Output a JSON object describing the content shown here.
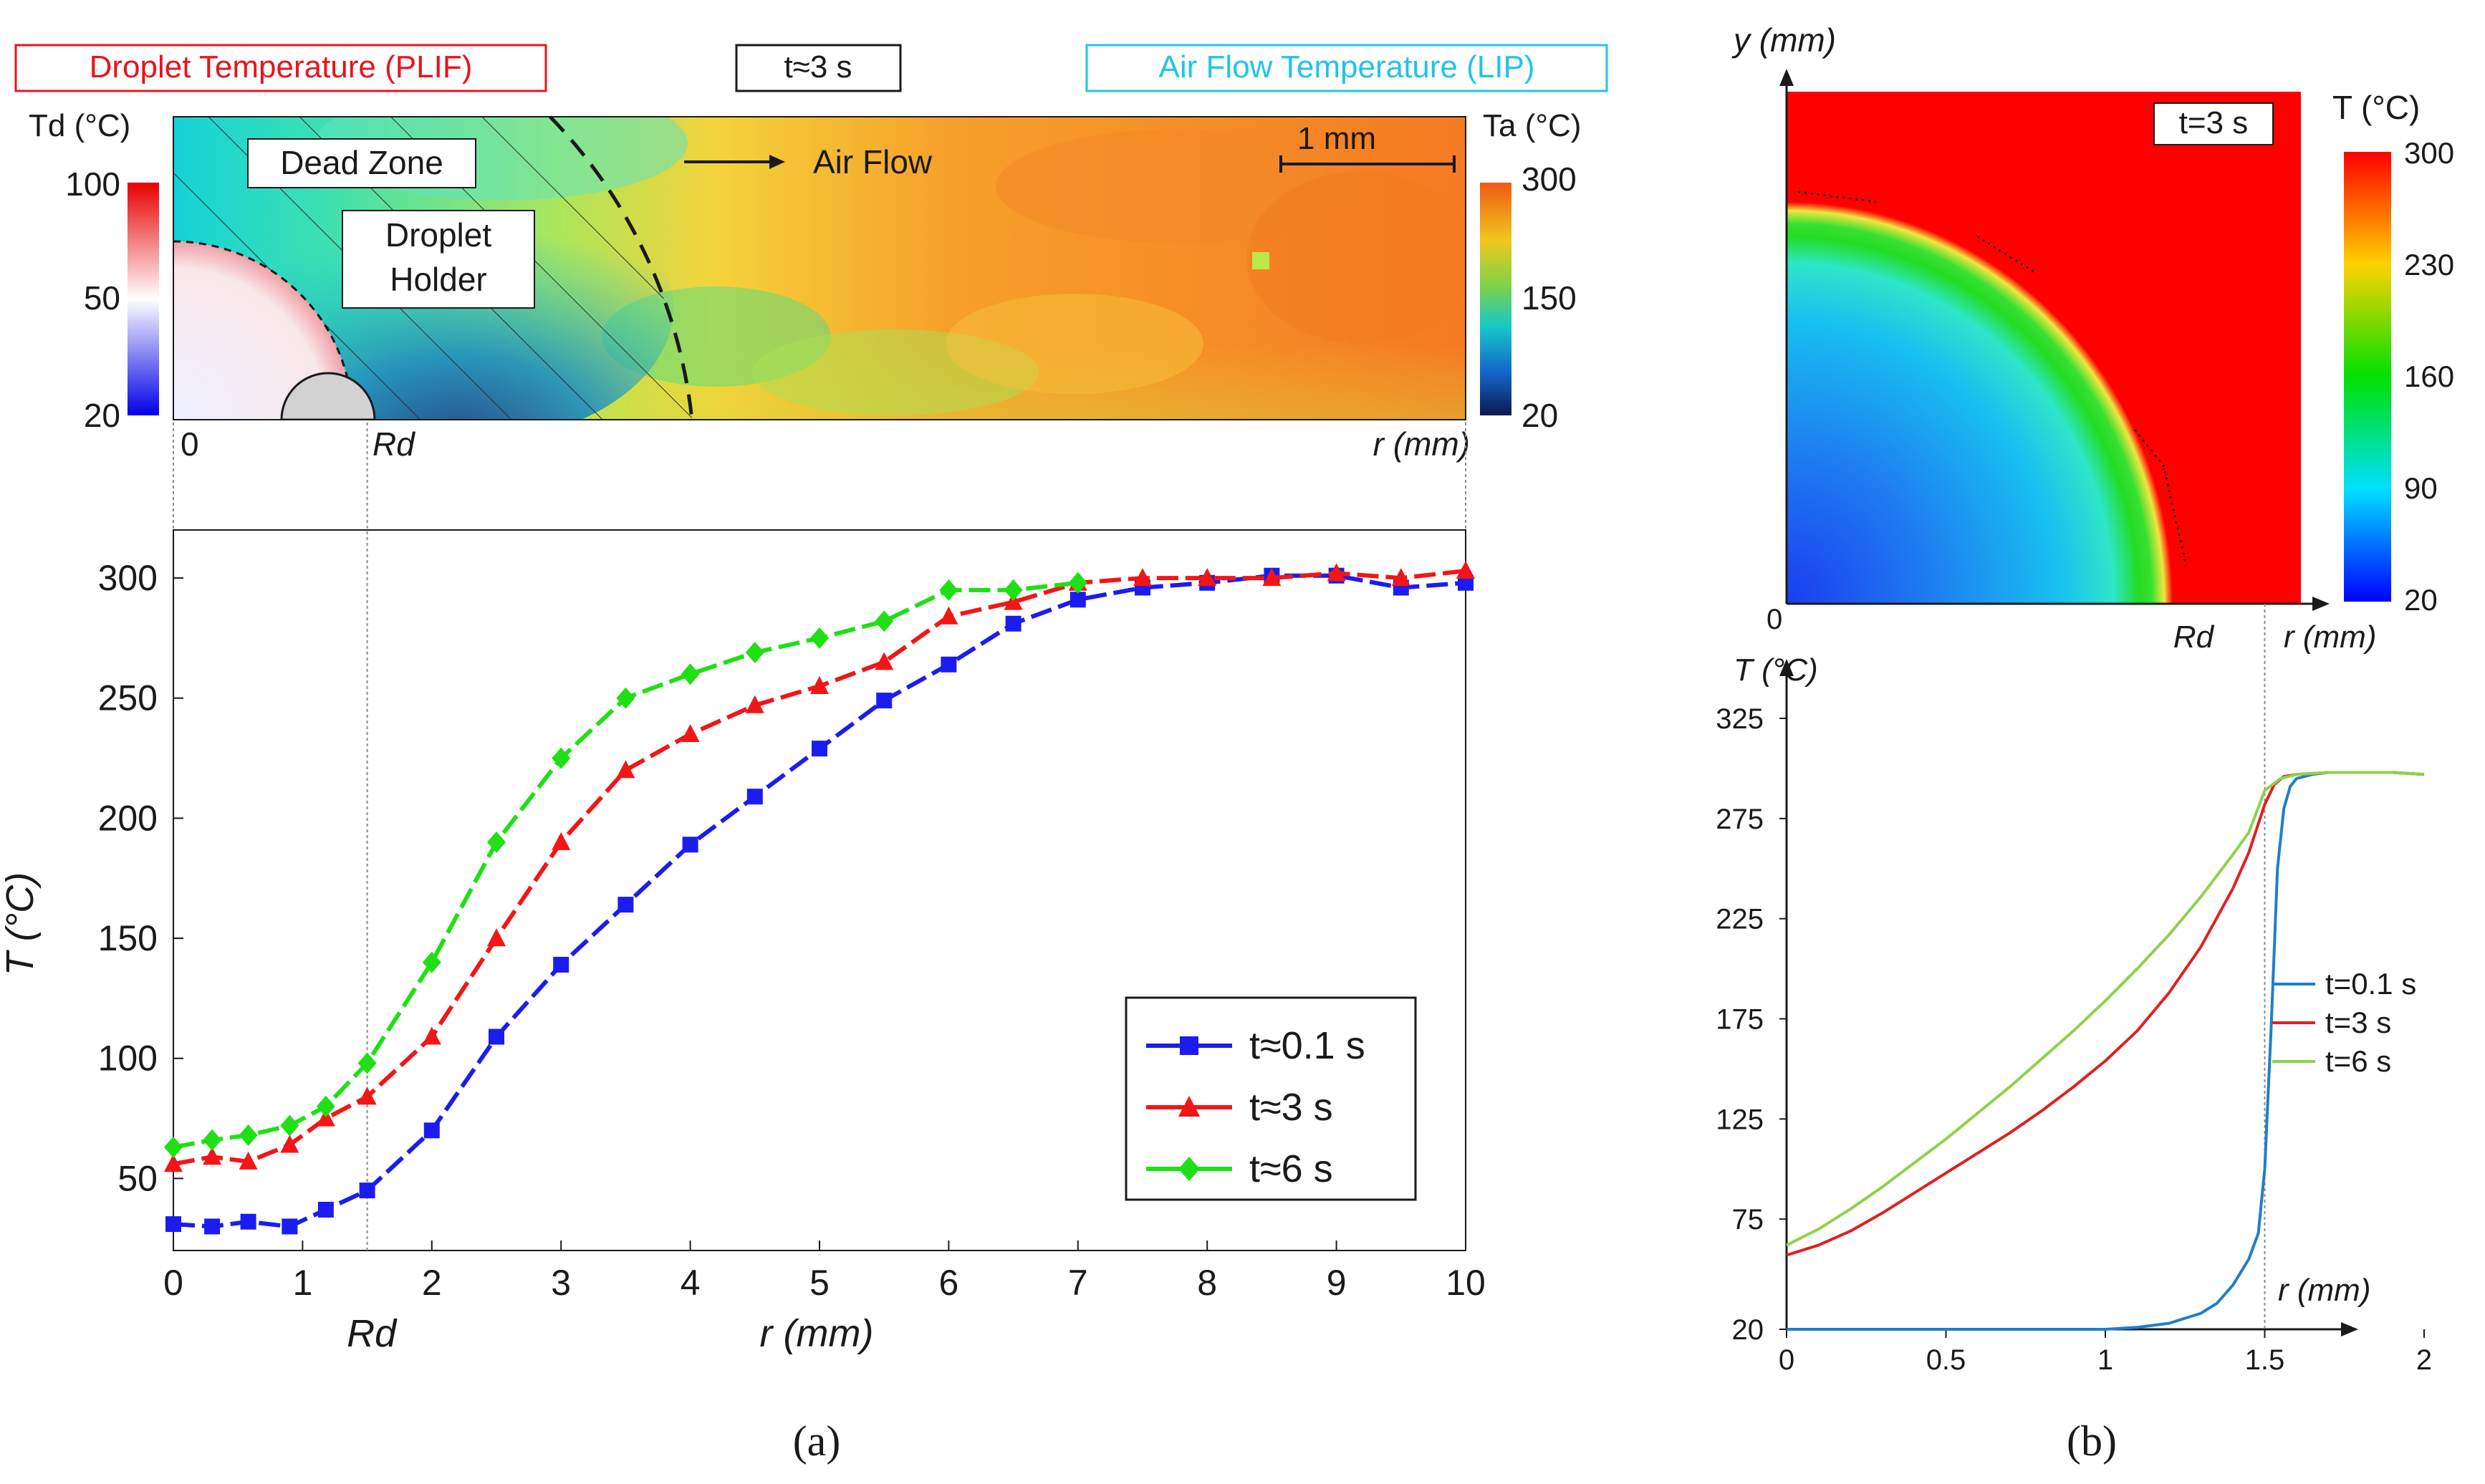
{
  "chart_data": [
    {
      "id": "a_field",
      "type": "heatmap",
      "badges": {
        "left": "Droplet Temperature (PLIF)",
        "center": "t≈3 s",
        "right": "Air Flow Temperature (LIP)"
      },
      "labels": {
        "dead_zone": "Dead Zone",
        "holder_line1": "Droplet",
        "holder_line2": "Holder",
        "air_flow": "Air Flow",
        "scale": "1 mm"
      },
      "colorbar_droplet": {
        "title": "Td (°C)",
        "ticks": [
          "100",
          "50",
          "20"
        ]
      },
      "colorbar_air": {
        "title": "Ta (°C)",
        "ticks": [
          "300",
          "150",
          "20"
        ]
      },
      "axis": {
        "origin": "0",
        "rd": "Rd",
        "r": "r (mm)"
      },
      "colors": {
        "droplet_badge": "#e8141c",
        "air_badge": "#21c4e6"
      }
    },
    {
      "id": "a_profiles",
      "type": "line",
      "xlabel": "r (mm)",
      "ylabel": "T (°C)",
      "xlim": [
        0,
        10
      ],
      "ylim": [
        20,
        320
      ],
      "xticks": [
        0,
        1,
        2,
        3,
        4,
        5,
        6,
        7,
        8,
        9,
        10
      ],
      "yticks": [
        50,
        100,
        150,
        200,
        250,
        300
      ],
      "rd_value": 1.5,
      "rd_label": "Rd",
      "legend_position": "bottom-right",
      "series": [
        {
          "name": "t≈0.1 s",
          "color": "#1c1cf0",
          "marker": "square",
          "x": [
            0,
            0.3,
            0.58,
            0.9,
            1.18,
            1.5,
            2,
            2.5,
            3,
            3.5,
            4,
            4.5,
            5,
            5.5,
            6,
            6.5,
            7,
            7.5,
            8,
            8.5,
            9,
            9.5,
            10
          ],
          "y": [
            31,
            30,
            32,
            30,
            37,
            45,
            70,
            109,
            139,
            164,
            189,
            209,
            229,
            249,
            264,
            281,
            291,
            296,
            298,
            301,
            301,
            296,
            298
          ]
        },
        {
          "name": "t≈3 s",
          "color": "#f21616",
          "marker": "triangle",
          "x": [
            0,
            0.3,
            0.58,
            0.9,
            1.18,
            1.5,
            2,
            2.5,
            3,
            3.5,
            4,
            4.5,
            5,
            5.5,
            6,
            6.5,
            7,
            7.5,
            8,
            8.5,
            9,
            9.5,
            10
          ],
          "y": [
            56,
            59,
            57,
            64,
            75,
            84,
            109,
            150,
            190,
            220,
            235,
            247,
            255,
            265,
            284,
            290,
            298,
            300,
            300,
            300,
            302,
            300,
            303
          ]
        },
        {
          "name": "t≈6 s",
          "color": "#1ee014",
          "marker": "diamond",
          "x": [
            0,
            0.3,
            0.58,
            0.9,
            1.18,
            1.5,
            2,
            2.5,
            3,
            3.5,
            4,
            4.5,
            5,
            5.5,
            6,
            6.5,
            7
          ],
          "y": [
            63,
            66,
            68,
            72,
            80,
            98,
            140,
            190,
            225,
            250,
            260,
            269,
            275,
            282,
            295,
            295,
            298
          ]
        }
      ],
      "caption": "(a)"
    },
    {
      "id": "b_field",
      "type": "heatmap",
      "badge": "t=3 s",
      "colorbar": {
        "title": "T (°C)",
        "ticks": [
          "300",
          "230",
          "160",
          "90",
          "20"
        ]
      },
      "axis": {
        "y": "y (mm)",
        "origin": "0",
        "rd": "Rd",
        "r": "r (mm)"
      }
    },
    {
      "id": "b_profiles",
      "type": "line",
      "xlabel": "r (mm)",
      "ylabel": "T (°C)",
      "xlim": [
        0,
        2
      ],
      "ylim": [
        20,
        325
      ],
      "xticks": [
        0,
        0.5,
        1,
        1.5,
        2
      ],
      "yticks": [
        20,
        75,
        125,
        175,
        225,
        275,
        325
      ],
      "rd_value": 1.5,
      "legend_position": "right",
      "series": [
        {
          "name": "t=0.1 s",
          "color": "#1f7fc9",
          "x": [
            0,
            0.5,
            1.0,
            1.1,
            1.2,
            1.3,
            1.35,
            1.4,
            1.45,
            1.48,
            1.5,
            1.52,
            1.54,
            1.56,
            1.58,
            1.6,
            1.65,
            1.7,
            1.8,
            1.9,
            2.0
          ],
          "y": [
            20,
            20,
            20,
            21,
            23,
            28,
            33,
            42,
            55,
            68,
            100,
            170,
            250,
            280,
            291,
            295,
            297,
            298,
            298,
            298,
            297
          ]
        },
        {
          "name": "t=3 s",
          "color": "#e02020",
          "x": [
            0,
            0.1,
            0.2,
            0.3,
            0.4,
            0.5,
            0.6,
            0.7,
            0.8,
            0.9,
            1.0,
            1.1,
            1.2,
            1.3,
            1.4,
            1.45,
            1.5,
            1.53,
            1.56,
            1.6,
            1.7,
            1.8,
            1.9,
            2.0
          ],
          "y": [
            57,
            62,
            69,
            78,
            88,
            98,
            108,
            118,
            129,
            141,
            154,
            169,
            188,
            211,
            240,
            258,
            282,
            292,
            296,
            297,
            298,
            298,
            298,
            297
          ]
        },
        {
          "name": "t=6 s",
          "color": "#8fd14a",
          "x": [
            0,
            0.1,
            0.2,
            0.3,
            0.4,
            0.5,
            0.6,
            0.7,
            0.8,
            0.9,
            1.0,
            1.1,
            1.2,
            1.3,
            1.4,
            1.45,
            1.5,
            1.55,
            1.6,
            1.7,
            1.8,
            1.9,
            2.0
          ],
          "y": [
            62,
            70,
            80,
            91,
            103,
            115,
            128,
            141,
            155,
            169,
            184,
            200,
            217,
            236,
            257,
            268,
            289,
            295,
            297,
            298,
            298,
            298,
            297
          ]
        }
      ],
      "caption": "(b)"
    }
  ]
}
